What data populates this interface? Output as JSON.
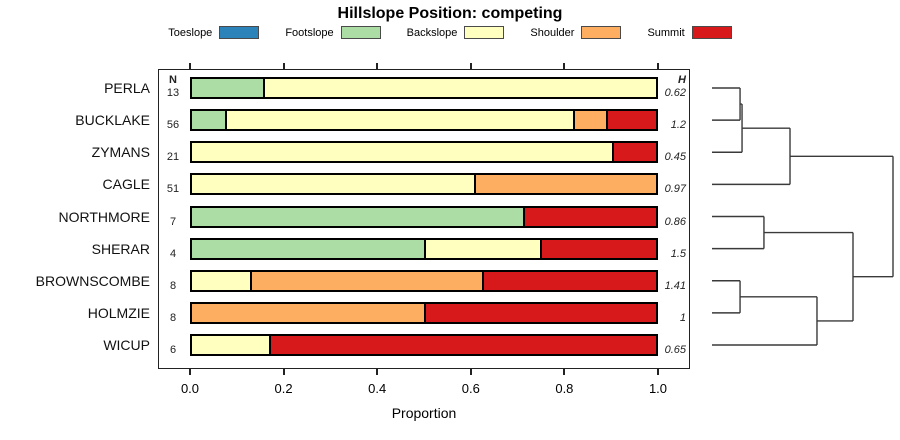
{
  "title": "Hillslope Position: competing",
  "axis": {
    "xlabel": "Proportion",
    "tick_labels": [
      "0.0",
      "0.2",
      "0.4",
      "0.6",
      "0.8",
      "1.0"
    ],
    "tick_values": [
      0,
      0.2,
      0.4,
      0.6,
      0.8,
      1.0
    ],
    "xlim": [
      0,
      1
    ]
  },
  "columns": {
    "n_header": "N",
    "h_header": "H"
  },
  "chart_data": {
    "type": "bar",
    "subtype": "horizontal-stacked-proportions-with-cluster-dendrogram",
    "title": "Hillslope Position: competing",
    "xlabel": "Proportion",
    "xlim": [
      0,
      1
    ],
    "x_ticks": [
      0,
      0.2,
      0.4,
      0.6,
      0.8,
      1.0
    ],
    "grid": false,
    "legend_position": "top",
    "categories": [
      "Toeslope",
      "Footslope",
      "Backslope",
      "Shoulder",
      "Summit"
    ],
    "colors": {
      "Toeslope": "#2b83ba",
      "Footslope": "#abdda4",
      "Backslope": "#ffffbf",
      "Shoulder": "#fdae61",
      "Summit": "#d7191c"
    },
    "rows": [
      {
        "label": "PERLA",
        "n": "13",
        "h": "0.62",
        "segments": [
          {
            "category": "Footslope",
            "value": 0.154
          },
          {
            "category": "Backslope",
            "value": 0.846
          }
        ]
      },
      {
        "label": "BUCKLAKE",
        "n": "56",
        "h": "1.2",
        "segments": [
          {
            "category": "Footslope",
            "value": 0.071
          },
          {
            "category": "Backslope",
            "value": 0.75
          },
          {
            "category": "Shoulder",
            "value": 0.072
          },
          {
            "category": "Summit",
            "value": 0.107
          }
        ]
      },
      {
        "label": "ZYMANS",
        "n": "21",
        "h": "0.45",
        "segments": [
          {
            "category": "Backslope",
            "value": 0.905
          },
          {
            "category": "Summit",
            "value": 0.095
          }
        ]
      },
      {
        "label": "CAGLE",
        "n": "51",
        "h": "0.97",
        "segments": [
          {
            "category": "Backslope",
            "value": 0.608
          },
          {
            "category": "Shoulder",
            "value": 0.392
          }
        ]
      },
      {
        "label": "NORTHMORE",
        "n": "7",
        "h": "0.86",
        "segments": [
          {
            "category": "Footslope",
            "value": 0.714
          },
          {
            "category": "Summit",
            "value": 0.286
          }
        ]
      },
      {
        "label": "SHERAR",
        "n": "4",
        "h": "1.5",
        "segments": [
          {
            "category": "Footslope",
            "value": 0.5
          },
          {
            "category": "Backslope",
            "value": 0.25
          },
          {
            "category": "Summit",
            "value": 0.25
          }
        ]
      },
      {
        "label": "BROWNSCOMBE",
        "n": "8",
        "h": "1.41",
        "segments": [
          {
            "category": "Backslope",
            "value": 0.125
          },
          {
            "category": "Shoulder",
            "value": 0.5
          },
          {
            "category": "Summit",
            "value": 0.375
          }
        ]
      },
      {
        "label": "HOLMZIE",
        "n": "8",
        "h": "1",
        "segments": [
          {
            "category": "Shoulder",
            "value": 0.5
          },
          {
            "category": "Summit",
            "value": 0.5
          }
        ]
      },
      {
        "label": "WICUP",
        "n": "6",
        "h": "0.65",
        "segments": [
          {
            "category": "Backslope",
            "value": 0.167
          },
          {
            "category": "Summit",
            "value": 0.833
          }
        ]
      }
    ],
    "dendrogram": {
      "orientation": "right-of-bars-leaves-left",
      "leaf_order": [
        "PERLA",
        "BUCKLAKE",
        "ZYMANS",
        "CAGLE",
        "NORTHMORE",
        "SHERAR",
        "BROWNSCOMBE",
        "HOLMZIE",
        "WICUP"
      ],
      "merges": [
        {
          "a": "L0",
          "b": "L1",
          "h": 0.155
        },
        {
          "a": "M0",
          "b": "L2",
          "h": 0.166
        },
        {
          "a": "M1",
          "b": "L3",
          "h": 0.431
        },
        {
          "a": "L4",
          "b": "L5",
          "h": 0.287
        },
        {
          "a": "L6",
          "b": "L7",
          "h": 0.155
        },
        {
          "a": "M4",
          "b": "L8",
          "h": 0.58
        },
        {
          "a": "M3",
          "b": "M5",
          "h": 0.779
        },
        {
          "a": "M2",
          "b": "M6",
          "h": 1.0
        }
      ]
    }
  }
}
